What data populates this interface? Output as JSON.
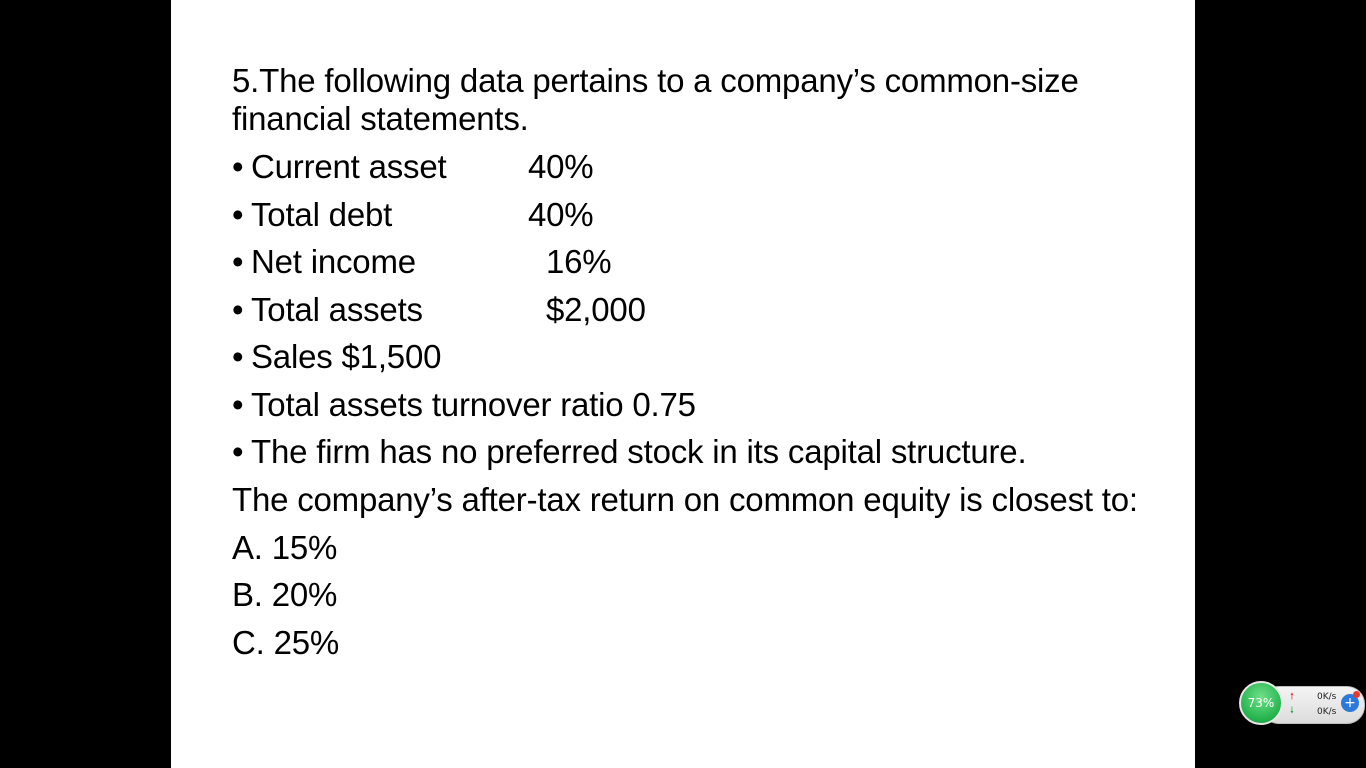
{
  "question": {
    "stem": "5.The following data pertains to a company’s common-size financial statements.",
    "bullet_glyph": "•",
    "items": [
      {
        "label": "Current asset",
        "value": "40%"
      },
      {
        "label": "Total debt",
        "value": "40%"
      },
      {
        "label": "Net income",
        "value": "16%"
      },
      {
        "label": "Total assets",
        "value": "$2,000"
      },
      {
        "label": "Sales $1,500",
        "value": ""
      },
      {
        "label": "Total assets turnover ratio 0.75",
        "value": ""
      },
      {
        "label": "The firm has no preferred stock in its capital structure.",
        "value": ""
      }
    ],
    "prompt": "The company’s after-tax return on common equity is closest to:",
    "options": [
      "A. 15%",
      "B. 20%",
      "C. 25%"
    ]
  },
  "widget": {
    "percent": "73%",
    "upload_speed": "0K/s",
    "download_speed": "0K/s",
    "up_icon": "arrow-up-icon",
    "down_icon": "arrow-down-icon",
    "plus_icon": "plus-icon",
    "colors": {
      "circle": "#23b24b",
      "plus": "#2d79d9",
      "up": "#e03a2f",
      "down": "#29a84a"
    }
  }
}
